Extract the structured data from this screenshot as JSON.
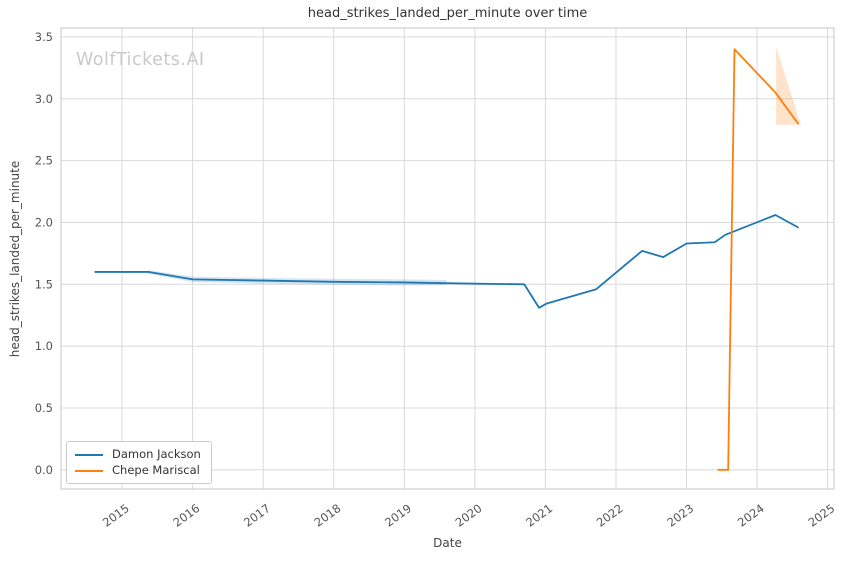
{
  "watermark": "WolfTickets.AI",
  "chart_data": {
    "type": "line",
    "title": "head_strikes_landed_per_minute over time",
    "xlabel": "Date",
    "ylabel": "head_strikes_landed_per_minute",
    "x_tick_labels": [
      "2015",
      "2016",
      "2017",
      "2018",
      "2019",
      "2020",
      "2021",
      "2022",
      "2023",
      "2024",
      "2025"
    ],
    "y_tick_labels": [
      "0.0",
      "0.5",
      "1.0",
      "1.5",
      "2.0",
      "2.5",
      "3.0",
      "3.5"
    ],
    "xlim": [
      2014.135,
      2025.09
    ],
    "ylim": [
      -0.155,
      3.572
    ],
    "grid": true,
    "grid_color": "#d9d9d9",
    "spine_color": "#cfcfcf",
    "legend_position": "lower left",
    "series": [
      {
        "name": "Damon Jackson",
        "color": "#1f77b4",
        "points": [
          [
            2014.62,
            1.6
          ],
          [
            2015.37,
            1.6
          ],
          [
            2016.0,
            1.54
          ],
          [
            2017.0,
            1.53
          ],
          [
            2018.0,
            1.52
          ],
          [
            2019.0,
            1.515
          ],
          [
            2020.0,
            1.505
          ],
          [
            2020.7,
            1.5
          ],
          [
            2020.91,
            1.31
          ],
          [
            2021.02,
            1.345
          ],
          [
            2021.72,
            1.46
          ],
          [
            2022.37,
            1.77
          ],
          [
            2022.67,
            1.72
          ],
          [
            2023.0,
            1.83
          ],
          [
            2023.4,
            1.84
          ],
          [
            2023.55,
            1.9
          ],
          [
            2024.26,
            2.06
          ],
          [
            2024.58,
            1.96
          ]
        ],
        "ci_band": {
          "x": [
            2015.37,
            2016.0,
            2017.0,
            2018.0,
            2019.0,
            2019.6
          ],
          "upper": [
            1.615,
            1.562,
            1.552,
            1.545,
            1.54,
            1.535
          ],
          "lower": [
            1.585,
            1.518,
            1.505,
            1.496,
            1.49,
            1.492
          ]
        }
      },
      {
        "name": "Chepe Mariscal",
        "color": "#ff7f0e",
        "points": [
          [
            2023.45,
            0.0
          ],
          [
            2023.59,
            0.0
          ],
          [
            2023.68,
            3.4
          ],
          [
            2024.26,
            3.05
          ],
          [
            2024.58,
            2.8
          ]
        ],
        "ci_polygon": [
          [
            2024.27,
            3.42
          ],
          [
            2024.27,
            2.79
          ],
          [
            2024.62,
            2.79
          ]
        ]
      }
    ]
  }
}
